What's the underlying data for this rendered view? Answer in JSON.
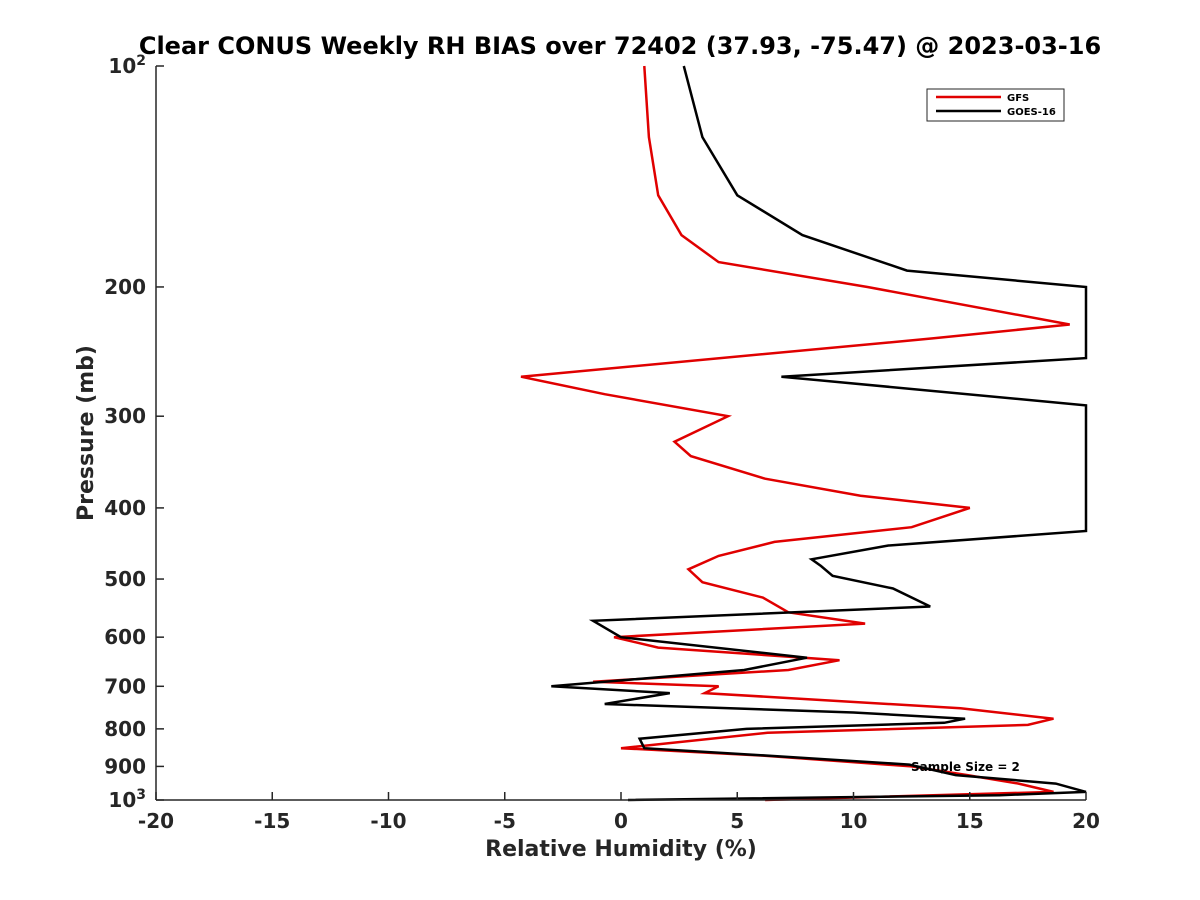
{
  "chart_data": {
    "type": "line",
    "title": "Clear CONUS Weekly RH BIAS over 72402 (37.93, -75.47) @ 2023-03-16",
    "xlabel": "Relative Humidity (%)",
    "ylabel": "Pressure (mb)",
    "xlim": [
      -20,
      20
    ],
    "ylim": [
      100,
      1000
    ],
    "yscale": "log",
    "y_reversed": true,
    "x_ticks": [
      -20,
      -15,
      -10,
      -5,
      0,
      5,
      10,
      15,
      20
    ],
    "x_tick_labels": [
      "-20",
      "-15",
      "-10",
      "-5",
      "0",
      "5",
      "10",
      "15",
      "20"
    ],
    "y_ticks": [
      200,
      300,
      400,
      500,
      600,
      700,
      800,
      900
    ],
    "y_tick_labels": [
      "200",
      "300",
      "400",
      "500",
      "600",
      "700",
      "800",
      "900"
    ],
    "y_edge_ticks": [
      {
        "value": 100,
        "base": "10",
        "exp": "2"
      },
      {
        "value": 1000,
        "base": "10",
        "exp": "3"
      }
    ],
    "annotation": "Sample Size = 2",
    "legend_position": "top-right",
    "series": [
      {
        "name": "GFS",
        "color": "#e00000",
        "points": [
          [
            1.0,
            100
          ],
          [
            1.2,
            125
          ],
          [
            1.6,
            150
          ],
          [
            2.6,
            170
          ],
          [
            4.2,
            185
          ],
          [
            10.6,
            200
          ],
          [
            19.3,
            225
          ],
          [
            13.4,
            235
          ],
          [
            -4.3,
            265
          ],
          [
            -0.7,
            280
          ],
          [
            4.6,
            300
          ],
          [
            2.3,
            325
          ],
          [
            3.0,
            340
          ],
          [
            6.2,
            365
          ],
          [
            10.3,
            385
          ],
          [
            15.0,
            400
          ],
          [
            12.5,
            425
          ],
          [
            6.6,
            445
          ],
          [
            4.2,
            465
          ],
          [
            2.9,
            485
          ],
          [
            3.5,
            505
          ],
          [
            6.1,
            530
          ],
          [
            7.2,
            555
          ],
          [
            10.5,
            575
          ],
          [
            -0.3,
            600
          ],
          [
            1.6,
            620
          ],
          [
            9.4,
            645
          ],
          [
            7.2,
            665
          ],
          [
            -1.2,
            690
          ],
          [
            4.2,
            700
          ],
          [
            3.6,
            715
          ],
          [
            14.6,
            750
          ],
          [
            18.6,
            775
          ],
          [
            17.5,
            790
          ],
          [
            6.3,
            810
          ],
          [
            0.0,
            850
          ],
          [
            6.1,
            870
          ],
          [
            12.5,
            900
          ],
          [
            14.9,
            925
          ],
          [
            17.1,
            950
          ],
          [
            18.6,
            975
          ],
          [
            6.2,
            1000
          ]
        ]
      },
      {
        "name": "GOES-16",
        "color": "#000000",
        "points": [
          [
            2.7,
            100
          ],
          [
            3.5,
            125
          ],
          [
            5.0,
            150
          ],
          [
            7.8,
            170
          ],
          [
            12.3,
            190
          ],
          [
            20.0,
            200
          ],
          [
            20.0,
            250
          ],
          [
            6.9,
            265
          ],
          [
            20.0,
            290
          ],
          [
            20.0,
            430
          ],
          [
            11.5,
            450
          ],
          [
            8.2,
            470
          ],
          [
            8.6,
            480
          ],
          [
            9.1,
            495
          ],
          [
            11.7,
            515
          ],
          [
            13.3,
            545
          ],
          [
            -1.2,
            570
          ],
          [
            0.0,
            600
          ],
          [
            8.0,
            640
          ],
          [
            5.3,
            665
          ],
          [
            -3.0,
            700
          ],
          [
            2.1,
            715
          ],
          [
            -0.7,
            740
          ],
          [
            10.0,
            760
          ],
          [
            14.8,
            775
          ],
          [
            13.9,
            785
          ],
          [
            5.4,
            800
          ],
          [
            0.8,
            825
          ],
          [
            1.0,
            850
          ],
          [
            6.3,
            870
          ],
          [
            12.4,
            895
          ],
          [
            14.4,
            925
          ],
          [
            18.7,
            950
          ],
          [
            20.0,
            975
          ],
          [
            16.3,
            985
          ],
          [
            0.3,
            1000
          ]
        ]
      }
    ]
  }
}
